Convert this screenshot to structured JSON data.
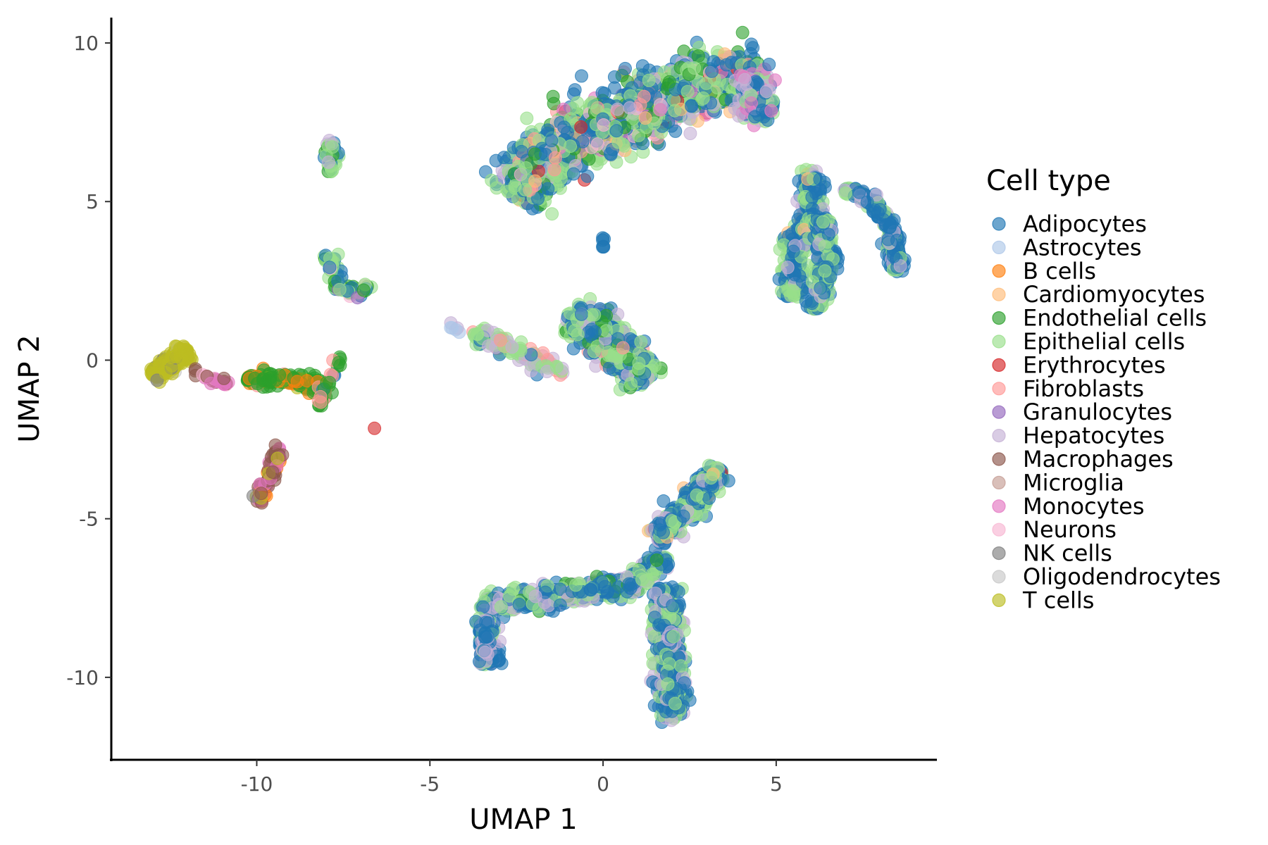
{
  "chart_data": {
    "type": "scatter",
    "xlabel": "UMAP 1",
    "ylabel": "UMAP 2",
    "xlim": [
      -14.2,
      9.6
    ],
    "ylim": [
      -12.6,
      10.8
    ],
    "x_ticks": [
      -10,
      -5,
      0,
      5
    ],
    "y_ticks": [
      -10,
      -5,
      0,
      5,
      10
    ],
    "x_tick_labels": [
      "-10",
      "-5",
      "0",
      "5"
    ],
    "y_tick_labels": [
      "-10",
      "-5",
      "0",
      "5",
      "10"
    ],
    "grid": false,
    "legend": {
      "title": "Cell type",
      "position": "right",
      "entries": [
        {
          "name": "Adipocytes",
          "color": "#1f77b4"
        },
        {
          "name": "Astrocytes",
          "color": "#aec7e8"
        },
        {
          "name": "B cells",
          "color": "#ff7f0e"
        },
        {
          "name": "Cardiomyocytes",
          "color": "#ffbb78"
        },
        {
          "name": "Endothelial cells",
          "color": "#2ca02c"
        },
        {
          "name": "Epithelial cells",
          "color": "#98df8a"
        },
        {
          "name": "Erythrocytes",
          "color": "#d62728"
        },
        {
          "name": "Fibroblasts",
          "color": "#ff9896"
        },
        {
          "name": "Granulocytes",
          "color": "#9467bd"
        },
        {
          "name": "Hepatocytes",
          "color": "#c5b0d5"
        },
        {
          "name": "Macrophages",
          "color": "#8c564b"
        },
        {
          "name": "Microglia",
          "color": "#c49c94"
        },
        {
          "name": "Monocytes",
          "color": "#e377c2"
        },
        {
          "name": "Neurons",
          "color": "#f7b6d2"
        },
        {
          "name": "NK cells",
          "color": "#7f7f7f"
        },
        {
          "name": "Oligodendrocytes",
          "color": "#c7c7c7"
        },
        {
          "name": "T cells",
          "color": "#bcbd22"
        }
      ]
    },
    "clusters": [
      {
        "path": [
          [
            -2.6,
            5.2
          ],
          [
            -1.2,
            6.9
          ],
          [
            1.5,
            8.0
          ],
          [
            3.2,
            9.0
          ],
          [
            4.2,
            8.8
          ]
        ],
        "width": 1.0,
        "count": 1500,
        "mix": {
          "Epithelial cells": 0.34,
          "Adipocytes": 0.34,
          "Endothelial cells": 0.09,
          "Hepatocytes": 0.06,
          "Cardiomyocytes": 0.05,
          "Fibroblasts": 0.04,
          "Monocytes": 0.03,
          "Erythrocytes": 0.02,
          "Neurons": 0.03
        }
      },
      {
        "path": [
          [
            4.3,
            7.6
          ],
          [
            4.6,
            8.3
          ],
          [
            4.2,
            9.1
          ]
        ],
        "width": 0.55,
        "count": 200,
        "mix": {
          "Hepatocytes": 0.4,
          "Adipocytes": 0.3,
          "Epithelial cells": 0.2,
          "Monocytes": 0.1
        }
      },
      {
        "path": [
          [
            0,
            3.5
          ],
          [
            0,
            3.9
          ]
        ],
        "width": 0.05,
        "count": 6,
        "mix": {
          "Adipocytes": 1
        }
      },
      {
        "path": [
          [
            6.0,
            6.0
          ],
          [
            6.0,
            4.5
          ],
          [
            5.5,
            3.5
          ],
          [
            5.5,
            2.0
          ]
        ],
        "width": 0.38,
        "count": 320,
        "mix": {
          "Adipocytes": 0.5,
          "Epithelial cells": 0.35,
          "Hepatocytes": 0.1,
          "Cardiomyocytes": 0.05
        }
      },
      {
        "path": [
          [
            6.3,
            4.5
          ],
          [
            6.5,
            3.0
          ],
          [
            6.1,
            1.6
          ]
        ],
        "width": 0.3,
        "count": 200,
        "mix": {
          "Adipocytes": 0.5,
          "Epithelial cells": 0.4,
          "Hepatocytes": 0.1
        }
      },
      {
        "path": [
          [
            7.0,
            5.4
          ],
          [
            7.8,
            5.0
          ],
          [
            8.3,
            4.2
          ],
          [
            8.5,
            2.8
          ]
        ],
        "width": 0.22,
        "count": 260,
        "mix": {
          "Adipocytes": 0.65,
          "Hepatocytes": 0.2,
          "Epithelial cells": 0.15
        }
      },
      {
        "path": [
          [
            -0.9,
            1.4
          ],
          [
            0.4,
            0.6
          ],
          [
            1.1,
            -0.7
          ]
        ],
        "width": 0.65,
        "count": 500,
        "mix": {
          "Epithelial cells": 0.45,
          "Adipocytes": 0.35,
          "Hepatocytes": 0.08,
          "Fibroblasts": 0.06,
          "Endothelial cells": 0.06
        }
      },
      {
        "path": [
          [
            -3.8,
            0.9
          ],
          [
            -2.5,
            0.3
          ],
          [
            -1.2,
            -0.4
          ]
        ],
        "width": 0.28,
        "count": 110,
        "mix": {
          "Epithelial cells": 0.55,
          "Hepatocytes": 0.2,
          "Fibroblasts": 0.15,
          "Adipocytes": 0.1
        }
      },
      {
        "path": [
          [
            -4.5,
            1.1
          ],
          [
            -4.0,
            0.9
          ]
        ],
        "width": 0.1,
        "count": 6,
        "mix": {
          "Astrocytes": 0.5,
          "Hepatocytes": 0.5
        }
      },
      {
        "path": [
          [
            -3.5,
            -7.7
          ],
          [
            -1.0,
            -7.4
          ],
          [
            1.0,
            -7.0
          ],
          [
            1.8,
            -6.2
          ]
        ],
        "width": 0.35,
        "count": 600,
        "mix": {
          "Adipocytes": 0.45,
          "Epithelial cells": 0.3,
          "Hepatocytes": 0.2,
          "Endothelial cells": 0.05
        }
      },
      {
        "path": [
          [
            -3.4,
            -8.2
          ],
          [
            -3.3,
            -9.6
          ]
        ],
        "width": 0.3,
        "count": 160,
        "mix": {
          "Adipocytes": 0.55,
          "Hepatocytes": 0.3,
          "Epithelial cells": 0.15
        }
      },
      {
        "path": [
          [
            1.5,
            -5.6
          ],
          [
            2.6,
            -4.5
          ],
          [
            3.3,
            -3.4
          ]
        ],
        "width": 0.38,
        "count": 400,
        "mix": {
          "Adipocytes": 0.5,
          "Epithelial cells": 0.3,
          "Hepatocytes": 0.15,
          "Cardiomyocytes": 0.03,
          "Erythrocytes": 0.02
        }
      },
      {
        "path": [
          [
            1.8,
            -7.2
          ],
          [
            1.9,
            -9.0
          ],
          [
            2.0,
            -11.3
          ]
        ],
        "width": 0.42,
        "count": 500,
        "mix": {
          "Adipocytes": 0.45,
          "Epithelial cells": 0.3,
          "Hepatocytes": 0.25
        }
      },
      {
        "path": [
          [
            -7.8,
            6.9
          ],
          [
            -7.9,
            5.9
          ]
        ],
        "width": 0.22,
        "count": 40,
        "mix": {
          "Epithelial cells": 0.6,
          "Adipocytes": 0.15,
          "Hepatocytes": 0.15,
          "Endothelial cells": 0.1
        }
      },
      {
        "path": [
          [
            -7.9,
            3.3
          ],
          [
            -7.6,
            2.2
          ],
          [
            -6.7,
            2.2
          ]
        ],
        "width": 0.2,
        "count": 70,
        "mix": {
          "Epithelial cells": 0.45,
          "Adipocytes": 0.25,
          "Endothelial cells": 0.15,
          "Granulocytes": 0.1,
          "Neurons": 0.05
        }
      },
      {
        "path": [
          [
            -13.0,
            -0.5
          ],
          [
            -12.0,
            0.3
          ]
        ],
        "width": 0.28,
        "count": 220,
        "mix": {
          "T cells": 0.85,
          "NK cells": 0.1,
          "Oligodendrocytes": 0.05
        }
      },
      {
        "path": [
          [
            -11.8,
            -0.4
          ],
          [
            -10.8,
            -0.8
          ]
        ],
        "width": 0.12,
        "count": 30,
        "mix": {
          "Monocytes": 0.45,
          "Macrophages": 0.4,
          "Neurons": 0.15
        }
      },
      {
        "path": [
          [
            -10.3,
            -0.6
          ],
          [
            -9.0,
            -0.6
          ],
          [
            -8.0,
            -0.9
          ]
        ],
        "width": 0.28,
        "count": 150,
        "mix": {
          "Endothelial cells": 0.7,
          "B cells": 0.15,
          "T cells": 0.1,
          "Fibroblasts": 0.05
        }
      },
      {
        "path": [
          [
            -8.2,
            -1.5
          ],
          [
            -7.6,
            0.1
          ]
        ],
        "width": 0.18,
        "count": 30,
        "mix": {
          "Endothelial cells": 0.6,
          "Fibroblasts": 0.25,
          "Adipocytes": 0.15
        }
      },
      {
        "path": [
          [
            -9.3,
            -2.7
          ],
          [
            -9.6,
            -3.6
          ],
          [
            -10.0,
            -4.5
          ]
        ],
        "width": 0.18,
        "count": 70,
        "mix": {
          "Macrophages": 0.35,
          "Monocytes": 0.3,
          "T cells": 0.15,
          "B cells": 0.1,
          "NK cells": 0.1
        }
      },
      {
        "path": [
          [
            -6.6,
            -2.15
          ],
          [
            -6.6,
            -2.15
          ]
        ],
        "width": 0.01,
        "count": 1,
        "mix": {
          "Erythrocytes": 1
        }
      }
    ]
  }
}
